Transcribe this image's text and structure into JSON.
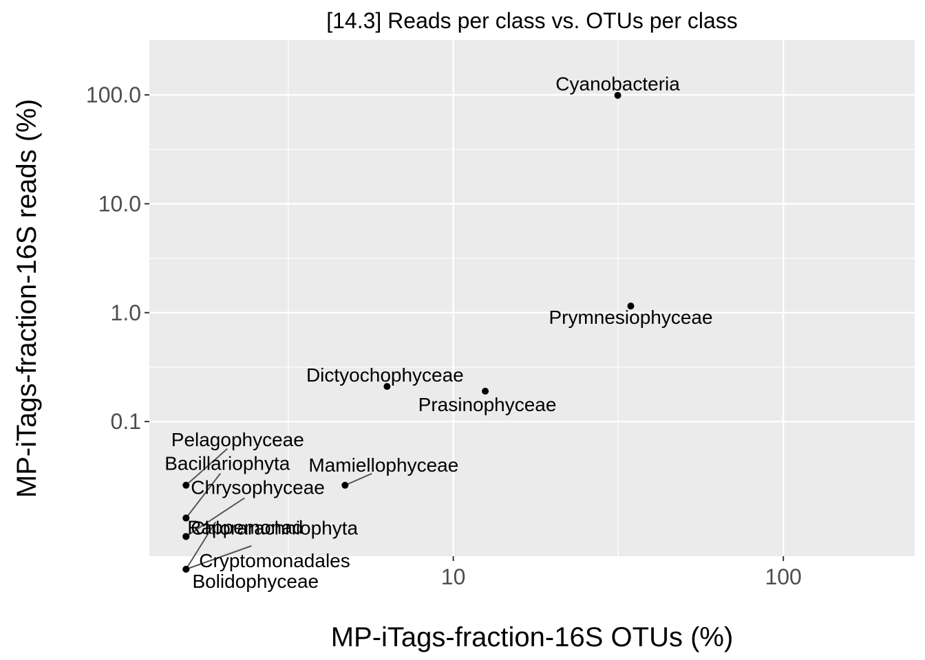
{
  "chart_data": {
    "type": "scatter",
    "title": "[14.3] Reads per class vs. OTUs per class",
    "xlabel": "MP-iTags-fraction-16S OTUs (%)",
    "ylabel": "MP-iTags-fraction-16S reads (%)",
    "x_scale": "log10",
    "y_scale": "log10",
    "xlim": [
      1.2,
      250
    ],
    "ylim": [
      0.0058,
      320
    ],
    "x_ticks": [
      10,
      100
    ],
    "x_tick_labels": [
      "10",
      "100"
    ],
    "y_ticks": [
      0.1,
      1,
      10,
      100
    ],
    "y_tick_labels": [
      "0.1",
      "1.0",
      "10.0",
      "100.0"
    ],
    "grid": true,
    "legend": "none",
    "colors": {
      "panel": "#ebebeb",
      "grid": "#ffffff",
      "point": "#000000",
      "leader": "#555555",
      "tick_text": "#4d4d4d"
    },
    "points": [
      {
        "label": "Cyanobacteria",
        "x": 31.5,
        "y": 99
      },
      {
        "label": "Prymnesiophyceae",
        "x": 34.5,
        "y": 1.15
      },
      {
        "label": "Dictyochophyceae",
        "x": 6.3,
        "y": 0.21
      },
      {
        "label": "Prasinophyceae",
        "x": 12.5,
        "y": 0.19
      },
      {
        "label": "Mamiellophyceae",
        "x": 4.7,
        "y": 0.026
      },
      {
        "label": "Pelagophyceae",
        "x": 1.55,
        "y": 0.026
      },
      {
        "label": "Bacillariophyta",
        "x": 1.55,
        "y": 0.013
      },
      {
        "label": "Chrysophyceae",
        "x": 1.55,
        "y": 0.013
      },
      {
        "label": "Rappemonad",
        "x": 1.55,
        "y": 0.0088
      },
      {
        "label": "Chlorarachniophyta",
        "x": 1.55,
        "y": 0.0088
      },
      {
        "label": "Cryptomonadales",
        "x": 1.55,
        "y": 0.0044
      },
      {
        "label": "Bolidophyceae",
        "x": 1.55,
        "y": 0.0044
      }
    ]
  }
}
